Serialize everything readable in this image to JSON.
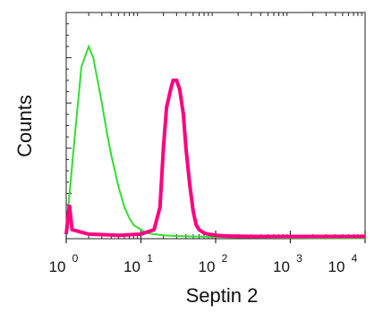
{
  "chart_data": {
    "type": "line",
    "xlabel": "Septin 2",
    "ylabel": "Counts",
    "x_scale": "log",
    "xlim": [
      1,
      10000
    ],
    "ylim": [
      0,
      100
    ],
    "x_ticks": [
      {
        "base": "10",
        "exp": "0",
        "value": 1
      },
      {
        "base": "10",
        "exp": "1",
        "value": 10
      },
      {
        "base": "10",
        "exp": "2",
        "value": 100
      },
      {
        "base": "10",
        "exp": "3",
        "value": 1000
      },
      {
        "base": "10",
        "exp": "4",
        "value": 10000
      }
    ],
    "grid": false,
    "series": [
      {
        "color": "#33dd33",
        "x": [
          1,
          1.3,
          1.6,
          2.0,
          2.3,
          2.7,
          3.0,
          3.5,
          4.0,
          5.0,
          6.0,
          7.0,
          8.0,
          10.0,
          12.0,
          15.0,
          20.0,
          30.0,
          50.0,
          100.0,
          200.0,
          400.0,
          800.0,
          2000.0,
          10000.0
        ],
        "y": [
          4,
          45,
          76,
          85,
          80,
          68,
          60,
          47,
          37,
          23,
          14,
          9,
          6,
          4,
          2.5,
          2,
          1.5,
          1.2,
          1,
          0.8,
          0.6,
          0.5,
          0.4,
          0.3,
          0.2
        ]
      },
      {
        "color": "#ff0080",
        "x": [
          1,
          1.1,
          1.2,
          2.0,
          5.0,
          10.0,
          15.0,
          18.0,
          20.0,
          22.0,
          25.0,
          27.0,
          30.0,
          33.0,
          37.0,
          40.0,
          45.0,
          50.0,
          55.0,
          60.0,
          70.0,
          80.0,
          100.0,
          150.0,
          300.0,
          1000.0,
          10000.0
        ],
        "y": [
          2,
          15,
          4,
          2,
          1.5,
          2,
          4,
          14,
          40,
          58,
          66,
          70,
          70,
          66,
          55,
          40,
          24,
          12,
          6,
          4,
          2.5,
          2,
          1.5,
          1.2,
          1,
          1,
          1
        ]
      }
    ]
  }
}
